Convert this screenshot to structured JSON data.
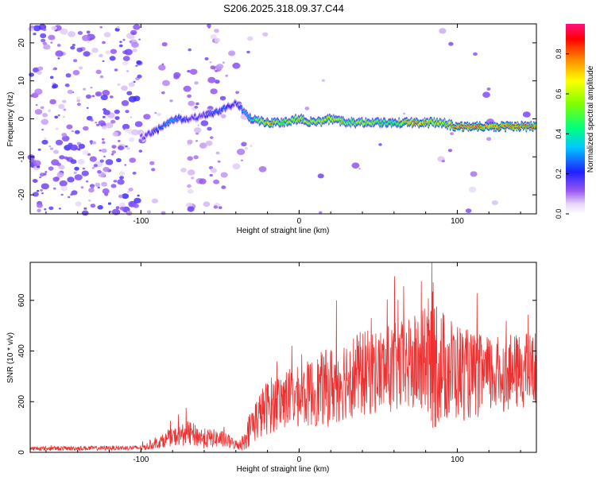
{
  "title": "S206.2025.318.09.37.C44",
  "chart_data": [
    {
      "type": "heatmap",
      "xlabel": "Height of straight line (km)",
      "ylabel": "Frequency (Hz)",
      "xlim": [
        -170,
        150
      ],
      "ylim": [
        -25,
        25
      ],
      "xticks": [
        -100,
        0,
        100
      ],
      "yticks": [
        -20,
        -10,
        0,
        10,
        20
      ],
      "colorbar": {
        "label": "Normalized spectral amplitude",
        "range": [
          0,
          0.95
        ],
        "ticks": [
          "0.0",
          "0.2",
          "0.4",
          "0.6",
          "0.8"
        ],
        "tick_values": [
          0,
          0.2,
          0.4,
          0.6,
          0.8
        ]
      },
      "ridge": {
        "description": "Frequency of spectral peak vs height",
        "x": [
          -100,
          -90,
          -80,
          -70,
          -60,
          -50,
          -40,
          -30,
          -20,
          -10,
          0,
          10,
          20,
          30,
          40,
          50,
          60,
          70,
          80,
          90,
          100,
          110,
          120,
          130,
          140,
          150
        ],
        "freq": [
          -5,
          -3,
          0,
          0,
          1,
          2,
          4,
          0,
          -1,
          -1,
          0,
          -1,
          0,
          -1,
          -1,
          -1,
          -1,
          -1,
          -1,
          -1,
          -2,
          -2,
          -2,
          -2,
          -2,
          -2
        ],
        "peak_amplitude": [
          0.15,
          0.25,
          0.35,
          0.2,
          0.2,
          0.3,
          0.2,
          0.45,
          0.85,
          0.6,
          0.7,
          0.7,
          0.75,
          0.6,
          0.7,
          0.6,
          0.55,
          0.85,
          0.8,
          0.65,
          0.9,
          0.9,
          0.85,
          0.9,
          0.9,
          0.85
        ]
      }
    },
    {
      "type": "line",
      "xlabel": "Height of straight line (km)",
      "ylabel": "SNR (10 * v/v)",
      "xlim": [
        -170,
        150
      ],
      "ylim": [
        0,
        750
      ],
      "xticks": [
        -100,
        0,
        100
      ],
      "yticks": [
        0,
        200,
        400,
        600
      ],
      "color": "#ee3030",
      "envelope": {
        "x": [
          -170,
          -100,
          -95,
          -80,
          -70,
          -60,
          -50,
          -40,
          -35,
          -30,
          -20,
          -10,
          0,
          10,
          20,
          30,
          40,
          50,
          60,
          70,
          80,
          85,
          90,
          100,
          110,
          120,
          130,
          140,
          150
        ],
        "mean": [
          15,
          18,
          25,
          60,
          75,
          55,
          55,
          30,
          40,
          110,
          180,
          210,
          220,
          240,
          260,
          300,
          310,
          320,
          330,
          340,
          360,
          380,
          340,
          320,
          300,
          300,
          310,
          320,
          330
        ],
        "spread": [
          8,
          10,
          15,
          35,
          50,
          40,
          35,
          20,
          35,
          80,
          110,
          120,
          120,
          140,
          160,
          170,
          170,
          170,
          180,
          190,
          220,
          300,
          230,
          200,
          170,
          160,
          150,
          150,
          150
        ]
      }
    }
  ]
}
